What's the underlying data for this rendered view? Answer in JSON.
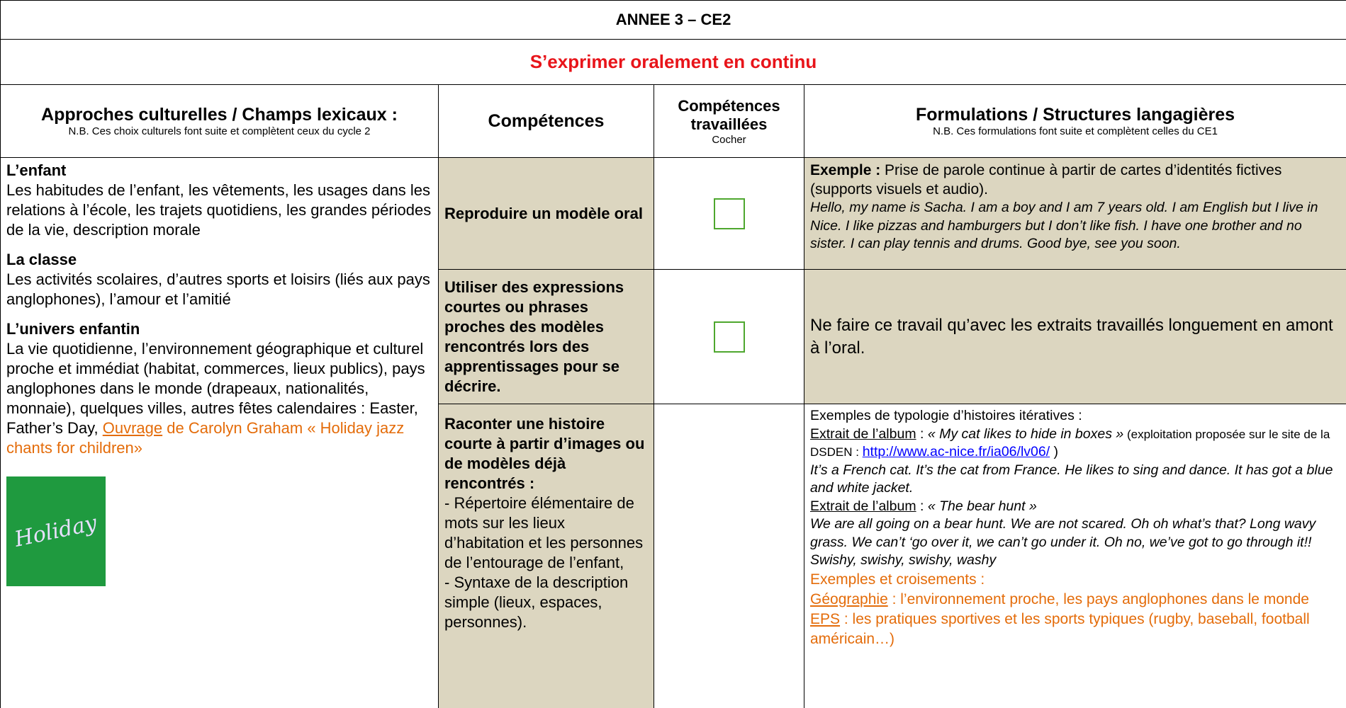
{
  "header": {
    "title": "ANNEE 3 – CE2",
    "subtitle": "S’exprimer oralement en continu"
  },
  "table": {
    "columns": [
      {
        "title": "Approches culturelles / Champs lexicaux :",
        "note": "N.B. Ces choix culturels font suite et complètent ceux du cycle 2"
      },
      {
        "title": "Compétences"
      },
      {
        "title": "Compétences travaillées",
        "note": "Cocher"
      },
      {
        "title": "Formulations / Structures langagières",
        "note": "N.B. Ces formulations font suite et complètent celles du CE1"
      }
    ],
    "themes": [
      {
        "heading": "L’enfant",
        "text": "Les habitudes de l’enfant, les vêtements, les usages dans les relations à l’école, les trajets quotidiens, les grandes périodes de la vie, description morale"
      },
      {
        "heading": "La classe",
        "text": "Les activités scolaires, d’autres sports et loisirs (liés aux pays anglophones), l’amour et l’amitié"
      },
      {
        "heading": "L’univers enfantin",
        "text": "La vie quotidienne, l’environnement géographique et culturel proche et immédiat (habitat, commerces, lieux publics), pays anglophones dans le monde (drapeaux, nationalités, monnaie), quelques villes, autres fêtes calendaires : Easter, Father’s Day,",
        "link": "Ouvrage",
        "link_rest": " de Carolyn Graham « Holiday jazz chants for children»"
      }
    ],
    "cover_image": {
      "title": "Holiday"
    },
    "rows": [
      {
        "competence": "Reproduire un modèle oral",
        "formulation": {
          "label": "Exemple :",
          "text": " Prise de parole continue à partir de cartes d’identités fictives (supports visuels et audio).",
          "example": "Hello, my name is Sacha. I am a boy and I am 7 years old. I am English but I live in Nice. I like pizzas and hamburgers but I don’t like fish. I have one brother and no sister. I can play tennis and drums. Good bye, see you soon."
        }
      },
      {
        "competence": "Utiliser des expressions courtes ou phrases proches des modèles rencontrés lors des apprentissages pour se décrire.",
        "formulation": {
          "text": "Ne faire ce travail qu’avec les extraits travaillés longuement en amont à l’oral."
        }
      },
      {
        "competence": "Raconter une histoire courte à partir d’images ou de modèles déjà rencontrés :",
        "details": [
          "- Répertoire élémentaire de mots sur les lieux d’habitation et les personnes de l’entourage de l’enfant,",
          "- Syntaxe de la description simple (lieux, espaces, personnes)."
        ],
        "formulation": {
          "intro": "Exemples de typologie d’histoires itératives :",
          "extract1": {
            "label": "Extrait de l’album",
            "sep": " : ",
            "title": "« My cat likes to hide in boxes »",
            "note": " (exploitation proposée sur le site de la DSDEN : ",
            "url": "http://www.ac-nice.fr/ia06/lv06/",
            "close": " )",
            "text": "It’s a French cat. It’s the cat from France. He likes to sing and dance. It has got a blue and white jacket."
          },
          "extract2": {
            "label": "Extrait de l’album",
            "sep": " : ",
            "title": "« The bear hunt »",
            "text": "We are all going on a bear hunt. We are not scared. Oh oh what’s that? Long wavy grass. We can’t ‘go over it, we can’t go under it. Oh no, we’ve got to go through it!! Swishy, swishy, swishy, washy"
          },
          "cross_heading": "Exemples et croisements :",
          "cross1_label": "Géographie",
          "cross1_text": " : l’environnement proche, les pays anglophones dans le monde ",
          "cross2_label": "EPS",
          "cross2_text": " : les pratiques sportives et les sports typiques (rugby, baseball, football américain…)"
        }
      }
    ]
  }
}
